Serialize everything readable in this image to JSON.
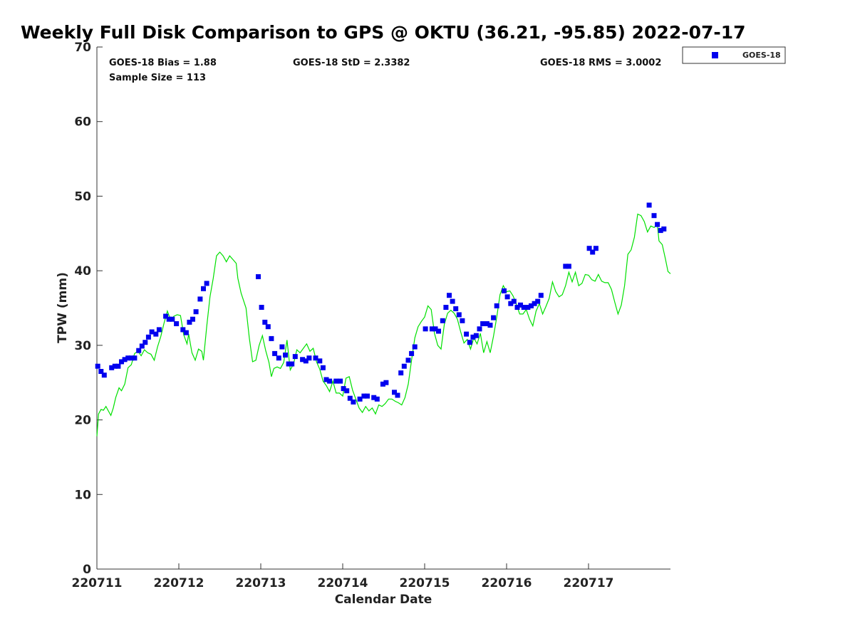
{
  "chart_data": {
    "type": "scatter",
    "title": "Weekly Full Disk Comparison to GPS @ OKTU (36.21, -95.85) 2022-07-17",
    "xlabel": "Calendar Date",
    "ylabel": "TPW (mm)",
    "xlim": [
      0,
      7
    ],
    "ylim": [
      0,
      70
    ],
    "x_tick_labels": [
      "220711",
      "220712",
      "220713",
      "220714",
      "220715",
      "220716",
      "220717"
    ],
    "y_ticks": [
      0,
      10,
      20,
      30,
      40,
      50,
      60,
      70
    ],
    "grid": false,
    "legend_position": "top-right (outside plot)",
    "stats": {
      "bias": "GOES-18 Bias = 1.88",
      "std": "GOES-18 StD = 2.3382",
      "rms": "GOES-18 RMS = 3.0002",
      "sample": "Sample Size = 113"
    },
    "series": [
      {
        "name": "GOES-18",
        "kind": "scatter",
        "color": "#0000ee",
        "marker": "square",
        "points": [
          [
            0.01,
            27.2
          ],
          [
            0.05,
            26.5
          ],
          [
            0.09,
            26.0
          ],
          [
            0.18,
            27.0
          ],
          [
            0.22,
            27.2
          ],
          [
            0.26,
            27.2
          ],
          [
            0.3,
            27.8
          ],
          [
            0.34,
            28.1
          ],
          [
            0.38,
            28.3
          ],
          [
            0.42,
            28.3
          ],
          [
            0.46,
            28.3
          ],
          [
            0.51,
            29.3
          ],
          [
            0.55,
            29.9
          ],
          [
            0.59,
            30.4
          ],
          [
            0.63,
            31.1
          ],
          [
            0.67,
            31.8
          ],
          [
            0.72,
            31.5
          ],
          [
            0.76,
            32.1
          ],
          [
            0.84,
            33.9
          ],
          [
            0.88,
            33.5
          ],
          [
            0.92,
            33.5
          ],
          [
            0.97,
            32.9
          ],
          [
            1.05,
            32.1
          ],
          [
            1.09,
            31.7
          ],
          [
            1.13,
            33.1
          ],
          [
            1.17,
            33.5
          ],
          [
            1.21,
            34.5
          ],
          [
            1.26,
            36.2
          ],
          [
            1.3,
            37.6
          ],
          [
            1.34,
            38.3
          ],
          [
            1.97,
            39.2
          ],
          [
            2.01,
            35.1
          ],
          [
            2.05,
            33.1
          ],
          [
            2.09,
            32.5
          ],
          [
            2.13,
            30.9
          ],
          [
            2.17,
            28.9
          ],
          [
            2.22,
            28.3
          ],
          [
            2.26,
            29.8
          ],
          [
            2.3,
            28.7
          ],
          [
            2.34,
            27.5
          ],
          [
            2.38,
            27.5
          ],
          [
            2.42,
            28.5
          ],
          [
            2.51,
            28.1
          ],
          [
            2.55,
            27.9
          ],
          [
            2.59,
            28.3
          ],
          [
            2.67,
            28.3
          ],
          [
            2.72,
            27.9
          ],
          [
            2.76,
            27.0
          ],
          [
            2.8,
            25.4
          ],
          [
            2.84,
            25.2
          ],
          [
            2.92,
            25.2
          ],
          [
            2.97,
            25.2
          ],
          [
            3.01,
            24.2
          ],
          [
            3.05,
            23.9
          ],
          [
            3.09,
            22.9
          ],
          [
            3.13,
            22.4
          ],
          [
            3.21,
            22.8
          ],
          [
            3.26,
            23.2
          ],
          [
            3.3,
            23.2
          ],
          [
            3.38,
            23.0
          ],
          [
            3.42,
            22.8
          ],
          [
            3.49,
            24.8
          ],
          [
            3.53,
            25.0
          ],
          [
            3.63,
            23.7
          ],
          [
            3.67,
            23.3
          ],
          [
            3.71,
            26.3
          ],
          [
            3.75,
            27.2
          ],
          [
            3.8,
            28.0
          ],
          [
            3.84,
            28.9
          ],
          [
            3.88,
            29.8
          ],
          [
            4.01,
            32.2
          ],
          [
            4.09,
            32.2
          ],
          [
            4.13,
            32.2
          ],
          [
            4.17,
            31.9
          ],
          [
            4.22,
            33.3
          ],
          [
            4.26,
            35.1
          ],
          [
            4.3,
            36.7
          ],
          [
            4.34,
            35.9
          ],
          [
            4.38,
            34.9
          ],
          [
            4.42,
            34.1
          ],
          [
            4.46,
            33.3
          ],
          [
            4.51,
            31.5
          ],
          [
            4.55,
            30.4
          ],
          [
            4.59,
            31.1
          ],
          [
            4.63,
            31.3
          ],
          [
            4.67,
            32.2
          ],
          [
            4.71,
            32.9
          ],
          [
            4.76,
            32.9
          ],
          [
            4.8,
            32.7
          ],
          [
            4.84,
            33.7
          ],
          [
            4.88,
            35.3
          ],
          [
            4.97,
            37.3
          ],
          [
            5.01,
            36.5
          ],
          [
            5.05,
            35.6
          ],
          [
            5.09,
            35.9
          ],
          [
            5.13,
            35.1
          ],
          [
            5.17,
            35.4
          ],
          [
            5.21,
            35.1
          ],
          [
            5.26,
            35.1
          ],
          [
            5.3,
            35.3
          ],
          [
            5.34,
            35.6
          ],
          [
            5.38,
            35.9
          ],
          [
            5.42,
            36.7
          ],
          [
            5.72,
            40.6
          ],
          [
            5.76,
            40.6
          ],
          [
            6.01,
            43.0
          ],
          [
            6.05,
            42.5
          ],
          [
            6.09,
            43.0
          ],
          [
            6.74,
            48.8
          ],
          [
            6.8,
            47.4
          ],
          [
            6.84,
            46.2
          ],
          [
            6.88,
            45.4
          ],
          [
            6.92,
            45.6
          ]
        ]
      },
      {
        "kind": "line",
        "color": "#00e000",
        "points": [
          [
            0.0,
            17.8
          ],
          [
            0.02,
            20.8
          ],
          [
            0.05,
            21.4
          ],
          [
            0.08,
            21.3
          ],
          [
            0.11,
            21.8
          ],
          [
            0.14,
            21.2
          ],
          [
            0.17,
            20.6
          ],
          [
            0.2,
            21.6
          ],
          [
            0.23,
            23.0
          ],
          [
            0.27,
            24.3
          ],
          [
            0.3,
            23.9
          ],
          [
            0.34,
            24.8
          ],
          [
            0.38,
            27.0
          ],
          [
            0.42,
            27.4
          ],
          [
            0.46,
            28.9
          ],
          [
            0.5,
            29.2
          ],
          [
            0.54,
            28.6
          ],
          [
            0.58,
            29.4
          ],
          [
            0.62,
            29.0
          ],
          [
            0.66,
            28.8
          ],
          [
            0.7,
            28.0
          ],
          [
            0.74,
            29.8
          ],
          [
            0.78,
            31.2
          ],
          [
            0.82,
            33.0
          ],
          [
            0.86,
            34.6
          ],
          [
            0.9,
            33.4
          ],
          [
            0.94,
            33.9
          ],
          [
            0.98,
            34.1
          ],
          [
            1.02,
            34.0
          ],
          [
            1.06,
            31.4
          ],
          [
            1.1,
            30.2
          ],
          [
            1.12,
            31.5
          ],
          [
            1.16,
            29.0
          ],
          [
            1.2,
            28.0
          ],
          [
            1.24,
            29.5
          ],
          [
            1.28,
            29.2
          ],
          [
            1.3,
            28.0
          ],
          [
            1.34,
            32.5
          ],
          [
            1.38,
            36.5
          ],
          [
            1.42,
            39.0
          ],
          [
            1.46,
            42.0
          ],
          [
            1.5,
            42.5
          ],
          [
            1.54,
            42.0
          ],
          [
            1.58,
            41.2
          ],
          [
            1.62,
            42.0
          ],
          [
            1.66,
            41.5
          ],
          [
            1.7,
            41.0
          ],
          [
            1.72,
            39.0
          ],
          [
            1.76,
            37.0
          ],
          [
            1.82,
            35.0
          ],
          [
            1.86,
            31.0
          ],
          [
            1.9,
            27.8
          ],
          [
            1.94,
            28.0
          ],
          [
            1.98,
            30.0
          ],
          [
            2.02,
            31.3
          ],
          [
            2.06,
            29.3
          ],
          [
            2.1,
            27.7
          ],
          [
            2.13,
            25.8
          ],
          [
            2.16,
            26.9
          ],
          [
            2.2,
            27.1
          ],
          [
            2.24,
            26.9
          ],
          [
            2.28,
            27.7
          ],
          [
            2.32,
            30.7
          ],
          [
            2.36,
            26.7
          ],
          [
            2.4,
            27.5
          ],
          [
            2.44,
            29.4
          ],
          [
            2.48,
            29.0
          ],
          [
            2.52,
            29.6
          ],
          [
            2.56,
            30.2
          ],
          [
            2.6,
            29.2
          ],
          [
            2.64,
            29.6
          ],
          [
            2.68,
            27.8
          ],
          [
            2.72,
            26.8
          ],
          [
            2.76,
            25.2
          ],
          [
            2.8,
            24.6
          ],
          [
            2.84,
            23.8
          ],
          [
            2.88,
            25.2
          ],
          [
            2.92,
            23.6
          ],
          [
            2.96,
            23.6
          ],
          [
            3.0,
            23.2
          ],
          [
            3.04,
            25.6
          ],
          [
            3.08,
            25.8
          ],
          [
            3.12,
            24.0
          ],
          [
            3.16,
            22.8
          ],
          [
            3.2,
            21.6
          ],
          [
            3.24,
            21.0
          ],
          [
            3.28,
            21.8
          ],
          [
            3.32,
            21.2
          ],
          [
            3.36,
            21.6
          ],
          [
            3.4,
            20.8
          ],
          [
            3.44,
            22.0
          ],
          [
            3.48,
            21.8
          ],
          [
            3.52,
            22.2
          ],
          [
            3.56,
            22.8
          ],
          [
            3.6,
            22.8
          ],
          [
            3.64,
            22.5
          ],
          [
            3.68,
            22.3
          ],
          [
            3.72,
            22.0
          ],
          [
            3.76,
            23.0
          ],
          [
            3.8,
            24.8
          ],
          [
            3.84,
            28.0
          ],
          [
            3.88,
            31.0
          ],
          [
            3.92,
            32.5
          ],
          [
            3.96,
            33.2
          ],
          [
            4.0,
            33.8
          ],
          [
            4.04,
            35.3
          ],
          [
            4.08,
            34.8
          ],
          [
            4.12,
            31.6
          ],
          [
            4.16,
            30.0
          ],
          [
            4.2,
            29.5
          ],
          [
            4.24,
            32.8
          ],
          [
            4.28,
            34.3
          ],
          [
            4.32,
            34.7
          ],
          [
            4.36,
            34.3
          ],
          [
            4.4,
            33.5
          ],
          [
            4.44,
            31.8
          ],
          [
            4.48,
            30.3
          ],
          [
            4.52,
            30.8
          ],
          [
            4.56,
            29.5
          ],
          [
            4.6,
            31.0
          ],
          [
            4.64,
            30.2
          ],
          [
            4.68,
            31.6
          ],
          [
            4.72,
            29.0
          ],
          [
            4.76,
            30.5
          ],
          [
            4.8,
            29.0
          ],
          [
            4.84,
            31.2
          ],
          [
            4.88,
            33.8
          ],
          [
            4.92,
            36.8
          ],
          [
            4.96,
            38.0
          ],
          [
            5.0,
            37.2
          ],
          [
            5.04,
            37.3
          ],
          [
            5.08,
            36.6
          ],
          [
            5.12,
            35.5
          ],
          [
            5.16,
            34.2
          ],
          [
            5.2,
            34.2
          ],
          [
            5.24,
            34.8
          ],
          [
            5.28,
            33.5
          ],
          [
            5.32,
            32.6
          ],
          [
            5.36,
            34.6
          ],
          [
            5.4,
            35.6
          ],
          [
            5.44,
            34.2
          ],
          [
            5.48,
            35.2
          ],
          [
            5.52,
            36.3
          ],
          [
            5.56,
            38.5
          ],
          [
            5.6,
            37.2
          ],
          [
            5.64,
            36.5
          ],
          [
            5.68,
            36.8
          ],
          [
            5.72,
            38.0
          ],
          [
            5.76,
            39.8
          ],
          [
            5.8,
            38.5
          ],
          [
            5.84,
            39.8
          ],
          [
            5.88,
            38.0
          ],
          [
            5.92,
            38.3
          ],
          [
            5.96,
            39.5
          ],
          [
            6.0,
            39.4
          ],
          [
            6.04,
            38.8
          ],
          [
            6.08,
            38.6
          ],
          [
            6.12,
            39.5
          ],
          [
            6.16,
            38.6
          ],
          [
            6.2,
            38.4
          ],
          [
            6.24,
            38.4
          ],
          [
            6.28,
            37.5
          ],
          [
            6.32,
            35.8
          ],
          [
            6.36,
            34.2
          ],
          [
            6.4,
            35.4
          ],
          [
            6.44,
            38.0
          ],
          [
            6.48,
            42.2
          ],
          [
            6.52,
            42.8
          ],
          [
            6.56,
            44.5
          ],
          [
            6.6,
            47.6
          ],
          [
            6.64,
            47.4
          ],
          [
            6.68,
            46.6
          ],
          [
            6.72,
            45.2
          ],
          [
            6.76,
            46.0
          ],
          [
            6.8,
            45.8
          ],
          [
            6.84,
            46.2
          ],
          [
            6.86,
            44.0
          ],
          [
            6.9,
            43.5
          ],
          [
            6.94,
            41.5
          ],
          [
            6.97,
            39.9
          ],
          [
            7.0,
            39.6
          ]
        ]
      }
    ]
  }
}
